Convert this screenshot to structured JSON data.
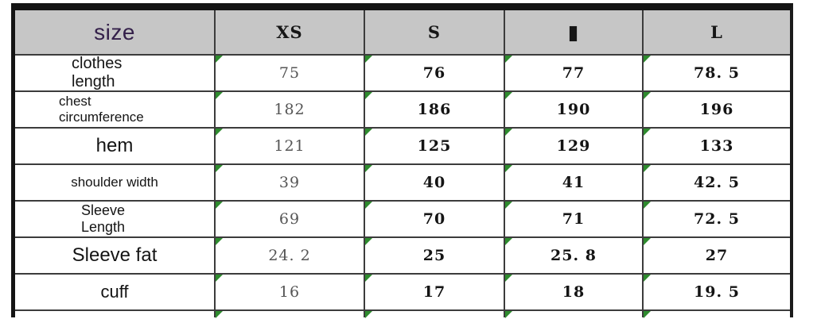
{
  "table": {
    "header": {
      "size_label": "size",
      "sizes": [
        "XS",
        "S",
        "▮",
        "L"
      ]
    },
    "rows": [
      {
        "label": "clothes length",
        "values": [
          "75",
          "76",
          "77",
          "78. 5"
        ]
      },
      {
        "label": "chest circumference",
        "values": [
          "182",
          "186",
          "190",
          "196"
        ]
      },
      {
        "label": "hem",
        "values": [
          "121",
          "125",
          "129",
          "133"
        ]
      },
      {
        "label": "shoulder width",
        "values": [
          "39",
          "40",
          "41",
          "42. 5"
        ]
      },
      {
        "label": "Sleeve Length",
        "values": [
          "69",
          "70",
          "71",
          "72. 5"
        ]
      },
      {
        "label": "Sleeve fat",
        "values": [
          "24. 2",
          "25",
          "25. 8",
          "27"
        ]
      },
      {
        "label": "cuff",
        "values": [
          "16",
          "17",
          "18",
          "19. 5"
        ]
      }
    ],
    "colors": {
      "header_bg": "#c6c6c6",
      "size_text": "#34204a",
      "corner_marker_green": "#2e8b2e",
      "grid_line": "#3c3c3c",
      "outer_border": "#141414"
    }
  }
}
